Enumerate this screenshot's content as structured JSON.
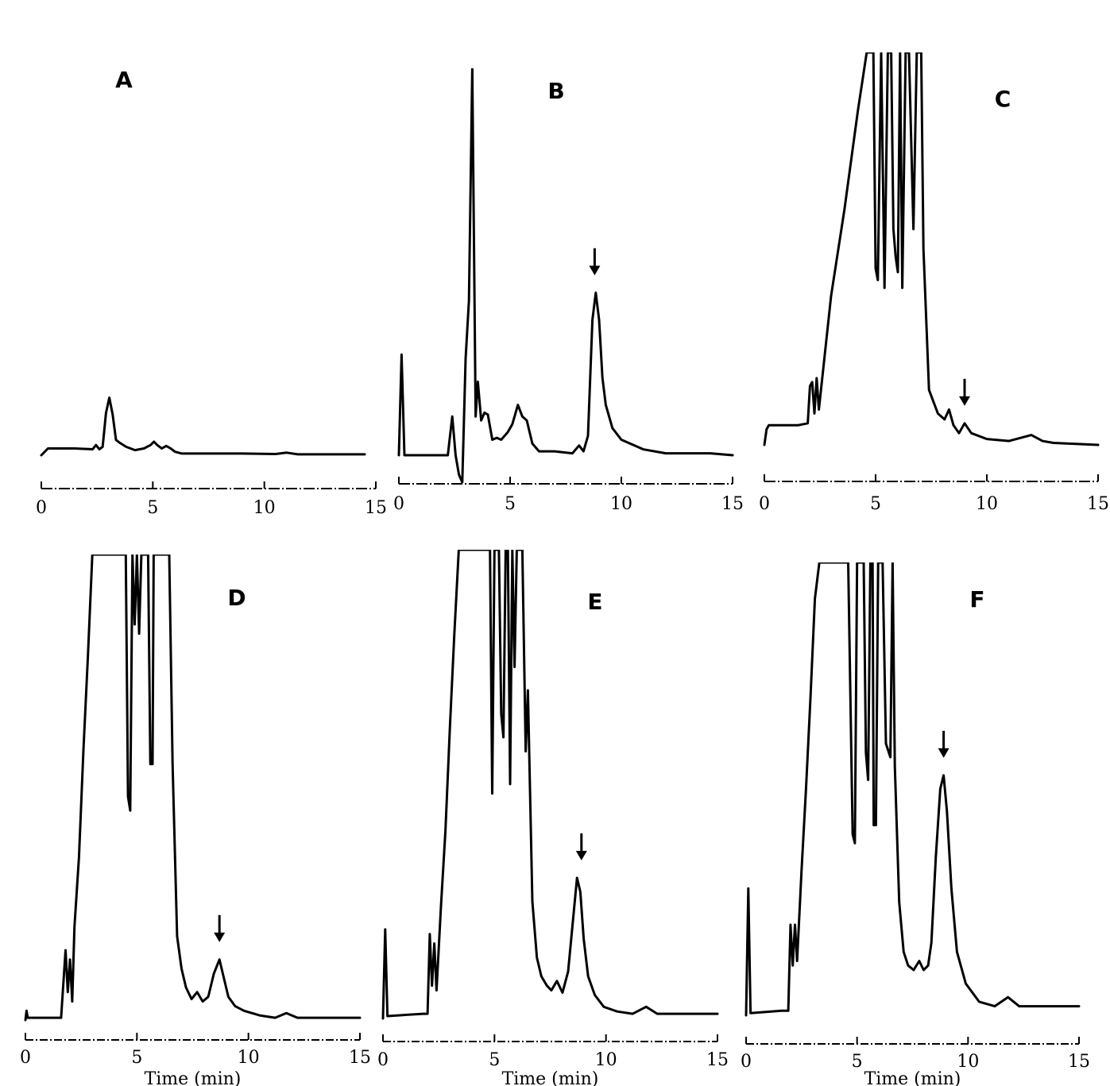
{
  "chart_data": [
    {
      "type": "line",
      "label": "A",
      "xlabel": "",
      "x_ticks": [
        "0",
        "5",
        "10",
        "15"
      ],
      "xlim": [
        0,
        15
      ],
      "ylim": [
        0,
        100
      ],
      "arrow_x": null,
      "x": [
        0,
        0.3,
        1.5,
        2.3,
        2.45,
        2.6,
        2.75,
        2.9,
        3.05,
        3.2,
        3.35,
        3.5,
        3.8,
        4.2,
        4.6,
        4.9,
        5.05,
        5.2,
        5.4,
        5.6,
        5.8,
        6.0,
        6.3,
        7,
        9,
        10.5,
        11,
        11.5,
        13,
        14.5
      ],
      "y": [
        0,
        4,
        4,
        3.5,
        6,
        3.5,
        5,
        25,
        34,
        24,
        9,
        7.5,
        5,
        3,
        4,
        6,
        8,
        6,
        4,
        5.5,
        4,
        2,
        1,
        1,
        1,
        0.7,
        1.5,
        0.5,
        0.5,
        0.5
      ]
    },
    {
      "type": "line",
      "label": "B",
      "xlabel": "",
      "x_ticks": [
        "0",
        "5",
        "10",
        "15"
      ],
      "xlim": [
        0,
        15
      ],
      "ylim": [
        0,
        100
      ],
      "arrow_x": 8.8,
      "x": [
        0,
        0.12,
        0.25,
        1.5,
        2.2,
        2.4,
        2.55,
        2.7,
        2.85,
        3.0,
        3.15,
        3.3,
        3.45,
        3.55,
        3.7,
        3.85,
        4.0,
        4.2,
        4.4,
        4.6,
        4.9,
        5.1,
        5.35,
        5.55,
        5.75,
        6.0,
        6.3,
        7,
        7.8,
        8.1,
        8.3,
        8.5,
        8.7,
        8.85,
        9.0,
        9.15,
        9.3,
        9.6,
        10,
        11,
        12,
        13,
        14,
        15
      ],
      "y": [
        0,
        26,
        0,
        0,
        0,
        10,
        0,
        -5,
        -7,
        25,
        40,
        100,
        10,
        19,
        9,
        11,
        10.5,
        4,
        4.5,
        4,
        6,
        8,
        13,
        10,
        9,
        3,
        1,
        1,
        0.5,
        2.5,
        1,
        5,
        35,
        42,
        35,
        20,
        13,
        7,
        4,
        1.5,
        0.5,
        0.5,
        0.5,
        0
      ]
    },
    {
      "type": "line",
      "label": "C",
      "xlabel": "",
      "x_ticks": [
        "0",
        "5",
        "10",
        "15"
      ],
      "xlim": [
        0,
        15
      ],
      "ylim": [
        0,
        100
      ],
      "arrow_x": 9.0,
      "x": [
        0,
        0.1,
        0.2,
        1.5,
        1.95,
        2.05,
        2.15,
        2.25,
        2.35,
        2.45,
        3.0,
        3.6,
        4.2,
        4.6,
        4.9,
        5.0,
        5.1,
        5.25,
        5.4,
        5.55,
        5.7,
        5.8,
        5.9,
        6.0,
        6.1,
        6.2,
        6.35,
        6.5,
        6.7,
        6.85,
        6.95,
        7.05,
        7.15,
        7.4,
        7.8,
        8.1,
        8.3,
        8.5,
        8.75,
        9.0,
        9.3,
        10,
        11,
        12,
        12.5,
        13,
        15
      ],
      "y": [
        0,
        4,
        5,
        5,
        5.5,
        15,
        16,
        8,
        17,
        9,
        38,
        60,
        85,
        100,
        100,
        45,
        42,
        100,
        40,
        100,
        100,
        55,
        48,
        44,
        100,
        40,
        100,
        100,
        55,
        100,
        100,
        100,
        50,
        14,
        8,
        6.5,
        9,
        5,
        3,
        5.5,
        3,
        1.5,
        1,
        2.5,
        1,
        0.5,
        0
      ]
    },
    {
      "type": "line",
      "label": "D",
      "xlabel": "Time (min)",
      "x_ticks": [
        "0",
        "5",
        "10",
        "15"
      ],
      "xlim": [
        0,
        15
      ],
      "ylim": [
        0,
        100
      ],
      "arrow_x": 8.7,
      "x": [
        0,
        0.05,
        0.1,
        0.4,
        1.6,
        1.8,
        1.9,
        2.0,
        2.1,
        2.2,
        2.4,
        2.6,
        2.8,
        3.0,
        3.2,
        3.4,
        4.5,
        4.6,
        4.7,
        4.8,
        4.9,
        5.0,
        5.1,
        5.2,
        5.3,
        5.4,
        5.5,
        5.6,
        5.7,
        5.75,
        5.9,
        6.0,
        6.1,
        6.3,
        6.45,
        6.6,
        6.8,
        7.0,
        7.2,
        7.45,
        7.7,
        7.95,
        8.2,
        8.45,
        8.7,
        8.9,
        9.1,
        9.4,
        9.8,
        10.5,
        11.2,
        11.7,
        12.2,
        13,
        15
      ],
      "y": [
        0,
        2,
        0.5,
        0.5,
        0.5,
        15,
        6,
        13,
        4,
        20,
        35,
        58,
        78,
        100,
        100,
        100,
        100,
        48,
        45,
        100,
        85,
        100,
        83,
        100,
        100,
        100,
        100,
        55,
        55,
        100,
        100,
        100,
        100,
        100,
        100,
        55,
        18,
        11,
        7,
        4.5,
        6,
        4,
        5,
        10,
        13,
        9,
        5,
        3,
        2,
        1,
        0.5,
        1.5,
        0.5,
        0.5,
        0.5
      ]
    },
    {
      "type": "line",
      "label": "E",
      "xlabel": "Time (min)",
      "x_ticks": [
        "0",
        "5",
        "10",
        "15"
      ],
      "xlim": [
        0,
        15
      ],
      "ylim": [
        0,
        100
      ],
      "arrow_x": 8.9,
      "x": [
        0,
        0.1,
        0.2,
        1.8,
        2.0,
        2.1,
        2.2,
        2.3,
        2.4,
        2.6,
        2.8,
        3.0,
        3.2,
        3.4,
        4.6,
        4.8,
        4.9,
        5.0,
        5.1,
        5.2,
        5.3,
        5.4,
        5.5,
        5.6,
        5.7,
        5.8,
        5.9,
        6.0,
        6.1,
        6.25,
        6.4,
        6.5,
        6.7,
        6.9,
        7.1,
        7.35,
        7.55,
        7.8,
        8.05,
        8.3,
        8.5,
        8.7,
        8.85,
        9.0,
        9.2,
        9.5,
        9.9,
        10.5,
        11.2,
        11.8,
        12.3,
        13,
        15
      ],
      "y": [
        0,
        19,
        0.5,
        1,
        1,
        18,
        7,
        16,
        6,
        24,
        40,
        62,
        82,
        100,
        100,
        100,
        48,
        100,
        100,
        100,
        65,
        60,
        100,
        100,
        50,
        100,
        75,
        100,
        100,
        100,
        57,
        70,
        25,
        13,
        9,
        7,
        6,
        8,
        5.5,
        10,
        20,
        30,
        27,
        17,
        9,
        5,
        2.5,
        1.5,
        1,
        2.5,
        1,
        1,
        1
      ]
    },
    {
      "type": "line",
      "label": "F",
      "xlabel": "Time (min)",
      "x_ticks": [
        "0",
        "5",
        "10",
        "15"
      ],
      "xlim": [
        0,
        15
      ],
      "ylim": [
        0,
        100
      ],
      "arrow_x": 8.9,
      "x": [
        0,
        0.1,
        0.2,
        1.6,
        1.9,
        2.0,
        2.1,
        2.2,
        2.3,
        2.5,
        2.7,
        2.9,
        3.1,
        3.3,
        4.6,
        4.8,
        4.9,
        5.0,
        5.1,
        5.2,
        5.3,
        5.4,
        5.5,
        5.6,
        5.7,
        5.75,
        5.85,
        5.95,
        6.05,
        6.15,
        6.3,
        6.5,
        6.6,
        6.7,
        6.9,
        7.1,
        7.3,
        7.55,
        7.8,
        8.0,
        8.2,
        8.35,
        8.55,
        8.75,
        8.9,
        9.05,
        9.25,
        9.5,
        9.9,
        10.5,
        11.2,
        11.8,
        12.3,
        13,
        15
      ],
      "y": [
        0,
        28,
        0.5,
        1,
        1,
        20,
        11,
        20,
        12,
        32,
        50,
        70,
        92,
        100,
        100,
        40,
        38,
        100,
        100,
        100,
        100,
        58,
        52,
        100,
        100,
        42,
        42,
        100,
        100,
        100,
        60,
        57,
        100,
        55,
        25,
        14,
        11,
        10,
        12,
        10,
        11,
        16,
        35,
        50,
        53,
        45,
        28,
        14,
        7,
        3,
        2,
        4,
        2,
        2,
        2
      ]
    }
  ]
}
